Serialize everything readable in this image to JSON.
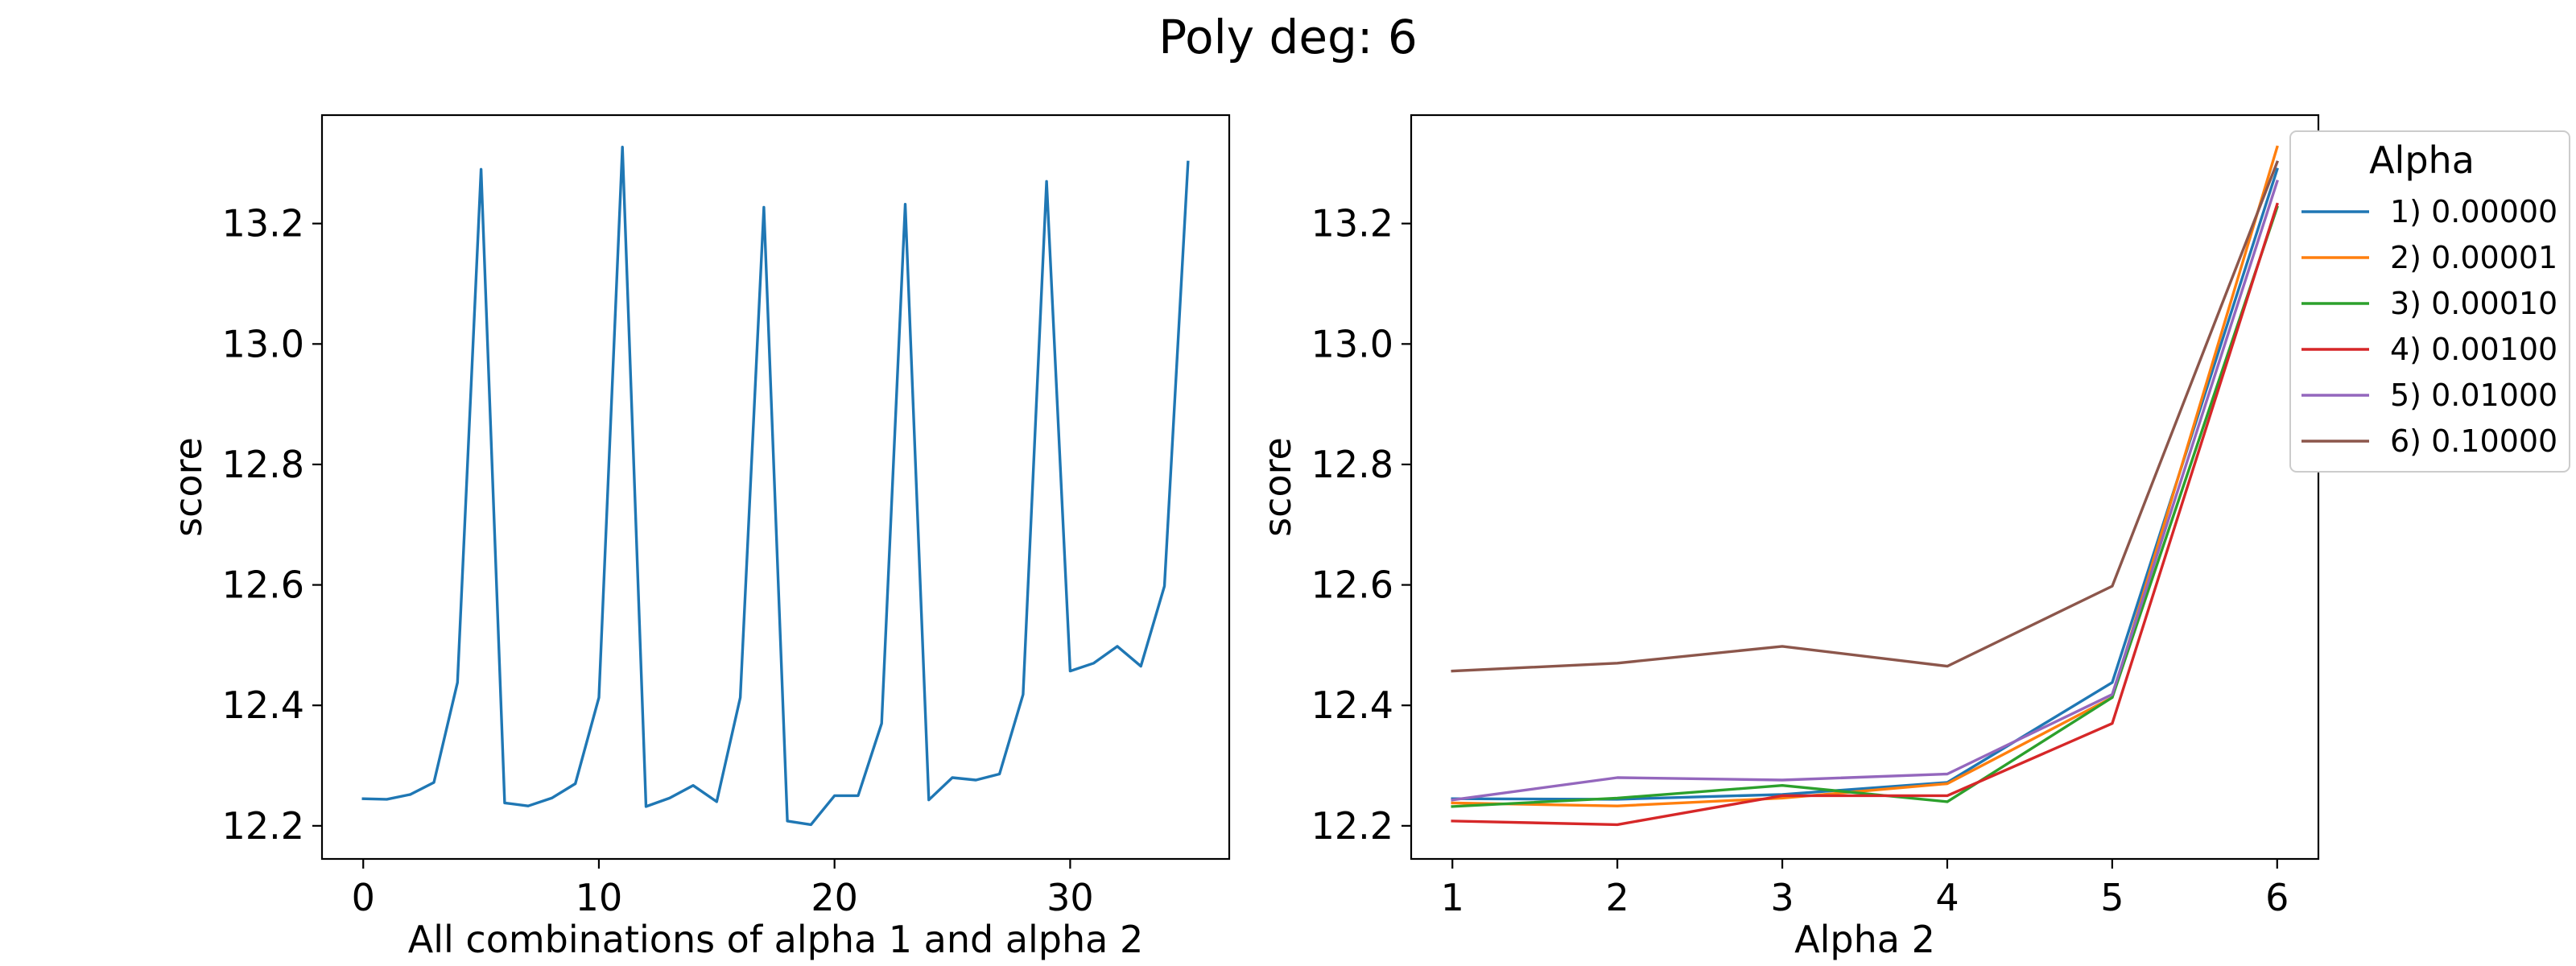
{
  "figure": {
    "title": "Poly deg: 6"
  },
  "chart_data": [
    {
      "type": "line",
      "xlabel": "All combinations of alpha 1 and alpha 2",
      "ylabel": "score",
      "xlim": [
        -1.75,
        36.75
      ],
      "ylim": [
        12.145,
        13.38
      ],
      "xticks": [
        0,
        10,
        20,
        30
      ],
      "yticks": [
        12.2,
        12.4,
        12.6,
        12.8,
        13.0,
        13.2
      ],
      "yticklabels": [
        "12.2",
        "12.4",
        "12.6",
        "12.8",
        "13.0",
        "13.2"
      ],
      "grid": false,
      "series": [
        {
          "color": "#1f77b4",
          "x": [
            0,
            1,
            2,
            3,
            4,
            5,
            6,
            7,
            8,
            9,
            10,
            11,
            12,
            13,
            14,
            15,
            16,
            17,
            18,
            19,
            20,
            21,
            22,
            23,
            24,
            25,
            26,
            27,
            28,
            29,
            30,
            31,
            32,
            33,
            34,
            35
          ],
          "y": [
            12.245,
            12.244,
            12.252,
            12.272,
            12.438,
            13.29,
            12.238,
            12.233,
            12.246,
            12.27,
            12.413,
            13.327,
            12.232,
            12.246,
            12.267,
            12.24,
            12.413,
            13.227,
            12.208,
            12.202,
            12.25,
            12.25,
            12.37,
            13.232,
            12.243,
            12.28,
            12.276,
            12.286,
            12.418,
            13.27,
            12.457,
            12.47,
            12.498,
            12.465,
            12.598,
            13.302
          ]
        }
      ]
    },
    {
      "type": "line",
      "xlabel": "Alpha 2",
      "ylabel": "score",
      "xlim": [
        0.75,
        6.25
      ],
      "ylim": [
        12.145,
        13.38
      ],
      "xticks": [
        1,
        2,
        3,
        4,
        5,
        6
      ],
      "yticks": [
        12.2,
        12.4,
        12.6,
        12.8,
        13.0,
        13.2
      ],
      "yticklabels": [
        "12.2",
        "12.4",
        "12.6",
        "12.8",
        "13.0",
        "13.2"
      ],
      "grid": false,
      "legend": {
        "title": "Alpha",
        "placement": "upper-right-outside"
      },
      "categories": [
        1,
        2,
        3,
        4,
        5,
        6
      ],
      "series": [
        {
          "name": "1) 0.00000",
          "color": "#1f77b4",
          "values": [
            12.245,
            12.244,
            12.252,
            12.272,
            12.438,
            13.29
          ]
        },
        {
          "name": "2) 0.00001",
          "color": "#ff7f0e",
          "values": [
            12.238,
            12.233,
            12.246,
            12.27,
            12.413,
            13.327
          ]
        },
        {
          "name": "3) 0.00010",
          "color": "#2ca02c",
          "values": [
            12.232,
            12.246,
            12.267,
            12.24,
            12.413,
            13.227
          ]
        },
        {
          "name": "4) 0.00100",
          "color": "#d62728",
          "values": [
            12.208,
            12.202,
            12.25,
            12.25,
            12.37,
            13.232
          ]
        },
        {
          "name": "5) 0.01000",
          "color": "#9467bd",
          "values": [
            12.243,
            12.28,
            12.276,
            12.286,
            12.418,
            13.27
          ]
        },
        {
          "name": "6) 0.10000",
          "color": "#8c564b",
          "values": [
            12.457,
            12.47,
            12.498,
            12.465,
            12.598,
            13.302
          ]
        }
      ]
    }
  ]
}
